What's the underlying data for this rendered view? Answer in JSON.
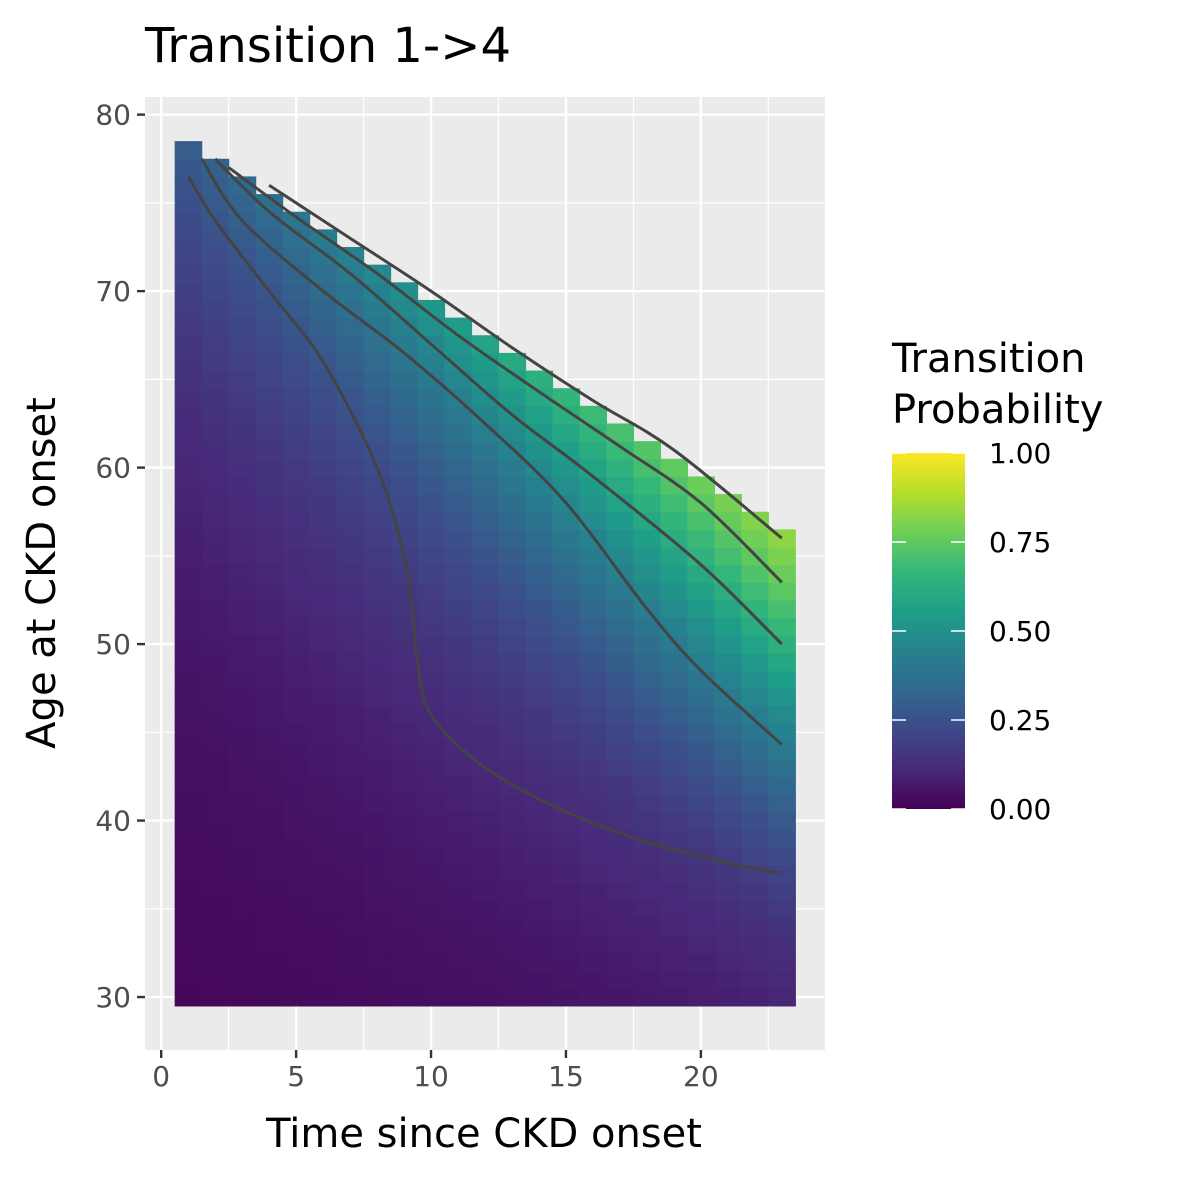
{
  "chart_data": {
    "type": "heatmap",
    "title": "Transition 1->4",
    "xlabel": "Time since CKD onset",
    "ylabel": "Age at CKD onset",
    "xlim": [
      -0.6,
      24.6
    ],
    "ylim": [
      27,
      81
    ],
    "x_ticks": [
      0,
      5,
      10,
      15,
      20
    ],
    "y_ticks": [
      30,
      40,
      50,
      60,
      70,
      80
    ],
    "x_tick_labels": [
      "0",
      "5",
      "10",
      "15",
      "20"
    ],
    "y_tick_labels": [
      "30",
      "40",
      "50",
      "60",
      "70",
      "80"
    ],
    "grid": true,
    "panel_background": "#ebebeb",
    "tile_grid": {
      "x_values": [
        1,
        2,
        3,
        4,
        5,
        6,
        7,
        8,
        9,
        10,
        11,
        12,
        13,
        14,
        15,
        16,
        17,
        18,
        19,
        20,
        21,
        22,
        23
      ],
      "y_range": [
        30,
        78
      ],
      "y_step": 1,
      "note_domain": "tiles present where age + time <= 79"
    },
    "color_scale": {
      "name": "viridis",
      "limits": [
        0,
        1
      ],
      "stops": [
        "#440154",
        "#482878",
        "#3e4989",
        "#31688e",
        "#26828e",
        "#1f9e89",
        "#35b779",
        "#6ece58",
        "#b5de2b",
        "#fde725"
      ]
    },
    "contours": [
      {
        "level": 0.1,
        "points": [
          [
            1,
            76.5
          ],
          [
            2,
            74
          ],
          [
            4,
            70
          ],
          [
            6,
            66
          ],
          [
            8,
            60
          ],
          [
            9,
            55
          ],
          [
            9.3,
            52
          ],
          [
            9.5,
            49
          ],
          [
            10,
            46
          ],
          [
            12,
            43
          ],
          [
            15,
            40.5
          ],
          [
            18,
            38.8
          ],
          [
            21,
            37.6
          ],
          [
            23,
            37
          ]
        ]
      },
      {
        "level": 0.25,
        "points": [
          [
            1.5,
            77.5
          ],
          [
            3,
            74
          ],
          [
            6,
            70
          ],
          [
            9,
            66.5
          ],
          [
            12,
            62.5
          ],
          [
            15,
            58
          ],
          [
            18,
            52
          ],
          [
            20,
            48.5
          ],
          [
            23,
            44.3
          ]
        ]
      },
      {
        "level": 0.4,
        "points": [
          [
            2,
            77.5
          ],
          [
            4,
            74.5
          ],
          [
            7,
            71
          ],
          [
            10,
            67
          ],
          [
            13,
            63
          ],
          [
            16,
            59.5
          ],
          [
            20,
            54.5
          ],
          [
            23,
            50
          ]
        ]
      },
      {
        "level": 0.55,
        "points": [
          [
            2.5,
            77
          ],
          [
            5,
            74.2
          ],
          [
            8,
            71
          ],
          [
            11,
            67.5
          ],
          [
            14,
            64.3
          ],
          [
            17,
            61.2
          ],
          [
            20,
            58
          ],
          [
            23,
            53.5
          ]
        ]
      },
      {
        "level": 0.7,
        "points": [
          [
            4,
            76
          ],
          [
            7,
            73
          ],
          [
            10,
            70
          ],
          [
            13,
            66.8
          ],
          [
            16,
            63.8
          ],
          [
            19,
            61
          ],
          [
            23,
            56
          ]
        ]
      }
    ],
    "legend": {
      "title_lines": [
        "Transition",
        "Probability"
      ],
      "labels": [
        "1.00",
        "0.75",
        "0.50",
        "0.25",
        "0.00"
      ],
      "values": [
        1.0,
        0.75,
        0.5,
        0.25,
        0.0
      ],
      "placement": "right"
    }
  }
}
